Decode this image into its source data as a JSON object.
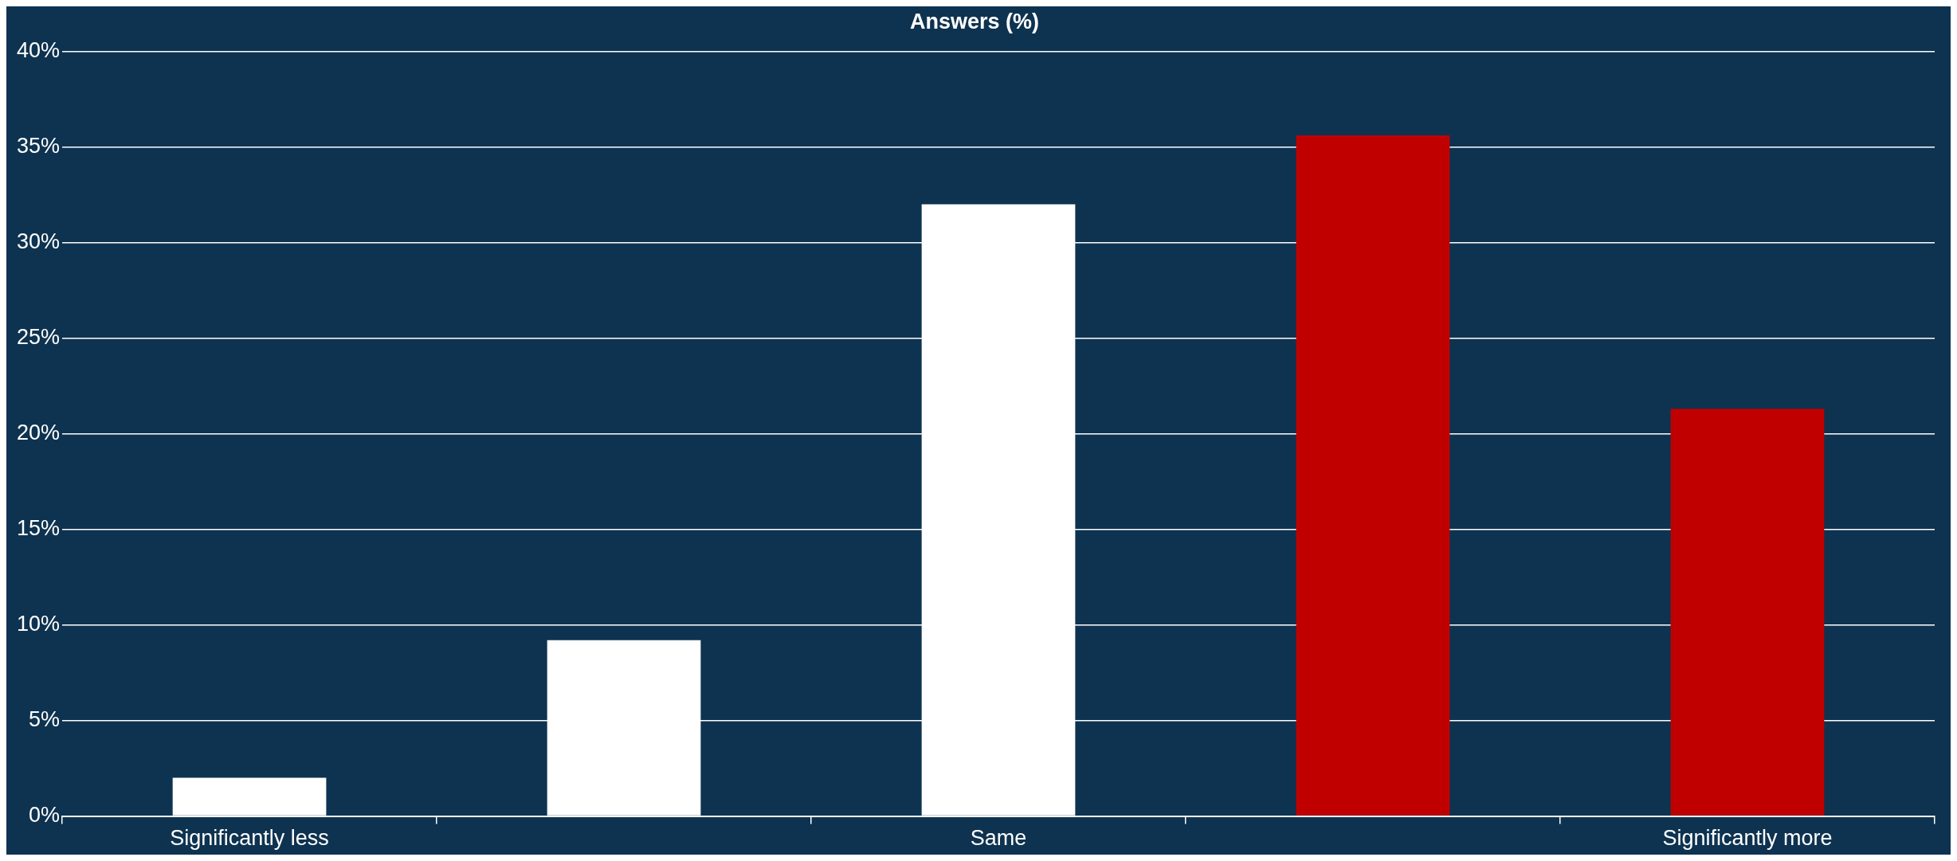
{
  "chart_data": {
    "type": "bar",
    "title": "Answers (%)",
    "categories": [
      "Significantly less",
      null,
      "Same",
      null,
      "Significantly more"
    ],
    "values": [
      2,
      9.2,
      32,
      35.6,
      21.3
    ],
    "colors": [
      "#ffffff",
      "#ffffff",
      "#ffffff",
      "#c00000",
      "#c00000"
    ],
    "ylim": [
      0,
      40
    ],
    "yticks": [
      {
        "value": 0,
        "label": "0%"
      },
      {
        "value": 5,
        "label": "5%"
      },
      {
        "value": 10,
        "label": "10%"
      },
      {
        "value": 15,
        "label": "15%"
      },
      {
        "value": 20,
        "label": "20%"
      },
      {
        "value": 25,
        "label": "25%"
      },
      {
        "value": 30,
        "label": "30%"
      },
      {
        "value": 35,
        "label": "35%"
      },
      {
        "value": 40,
        "label": "40%"
      }
    ],
    "grid": "y",
    "legend": false
  }
}
